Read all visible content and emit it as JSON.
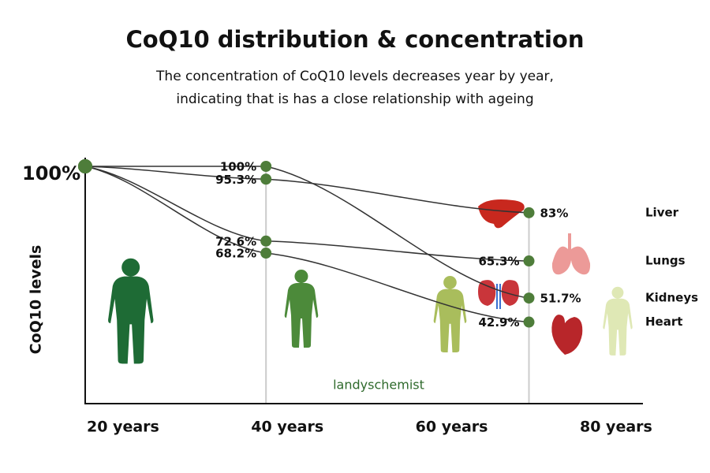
{
  "chart_data": {
    "type": "line",
    "title": "CoQ10 distribution & concentration",
    "subtitle": [
      "The concentration of CoQ10 levels decreases year by year,",
      "indicating that is has a close relationship with ageing"
    ],
    "y_label": "CoQ10 levels",
    "watermark": "landyschemist",
    "x": [
      20,
      42,
      74
    ],
    "xlim": [
      20,
      80
    ],
    "xticks": [
      {
        "value": 20,
        "label": "20 years"
      },
      {
        "value": 40,
        "label": "40 years"
      },
      {
        "value": 60,
        "label": "60 years"
      },
      {
        "value": 80,
        "label": "80 years"
      }
    ],
    "ylim": [
      13,
      100
    ],
    "yticks": [
      {
        "value": 100,
        "label": "100%"
      }
    ],
    "line_color": "#333333",
    "marker_color": "#4e7d3a",
    "series": [
      {
        "name": "Liver",
        "color": "#4e7d3a",
        "values": [
          100,
          95.3,
          83
        ],
        "value_labels": [
          null,
          "95.3%",
          "83%"
        ]
      },
      {
        "name": "Lungs",
        "color": "#4e7d3a",
        "values": [
          100,
          72.6,
          65.3
        ],
        "value_labels": [
          null,
          "72.6%",
          "65.3%"
        ]
      },
      {
        "name": "Kidneys",
        "color": "#4e7d3a",
        "values": [
          100,
          100,
          51.7
        ],
        "value_labels": [
          null,
          "100%",
          "51.7%"
        ]
      },
      {
        "name": "Heart",
        "color": "#4e7d3a",
        "values": [
          100,
          68.2,
          42.9
        ],
        "value_labels": [
          null,
          "68.2%",
          "42.9%"
        ]
      }
    ]
  }
}
